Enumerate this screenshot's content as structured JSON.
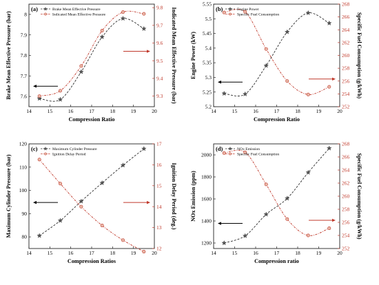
{
  "colors": {
    "left": "#2b2b2b",
    "right": "#c0392b",
    "frame": "#222222"
  },
  "chart_data": [
    {
      "panel": "(a)",
      "type": "line",
      "xlabel": "Compression Ratio",
      "ylabel_left": "Brake Mean Effective Pressure (bar)",
      "ylabel_right": "Indicated Mean Effective Pressure (bar)",
      "xlim": [
        14,
        20
      ],
      "xticks": [
        14,
        15,
        16,
        17,
        18,
        19,
        20
      ],
      "ylim_left": [
        7.55,
        8.05
      ],
      "yticks_left": [
        7.6,
        7.7,
        7.8,
        7.9,
        8.0
      ],
      "ylim_right": [
        9.24,
        9.82
      ],
      "yticks_right": [
        9.3,
        9.4,
        9.5,
        9.6,
        9.7,
        9.8
      ],
      "x": [
        14.5,
        15.5,
        16.5,
        17.5,
        18.5,
        19.5
      ],
      "series": [
        {
          "name": "Brake Mean Effective Pressure",
          "axis": "left",
          "marker": "star",
          "values": [
            7.59,
            7.585,
            7.72,
            7.89,
            7.98,
            7.93
          ]
        },
        {
          "name": "Indicated Mean Effective Pressure",
          "axis": "right",
          "marker": "circle",
          "values": [
            9.3,
            9.33,
            9.47,
            9.67,
            9.775,
            9.765
          ]
        }
      ],
      "legend_position": "top-left",
      "arrows": [
        {
          "direction": "left",
          "side": "left"
        },
        {
          "direction": "right",
          "side": "right"
        }
      ]
    },
    {
      "panel": "(b)",
      "type": "line",
      "xlabel": "Compression Ratio",
      "ylabel_left": "Engine Power (kW)",
      "ylabel_right": "Specific Fuel Consumption (g/kWh)",
      "xlim": [
        14,
        20
      ],
      "xticks": [
        14,
        15,
        16,
        17,
        18,
        19,
        20
      ],
      "ylim_left": [
        5.2,
        5.55
      ],
      "yticks_left": [
        5.2,
        5.25,
        5.3,
        5.35,
        5.4,
        5.45,
        5.5,
        5.55
      ],
      "ylim_right": [
        252,
        268
      ],
      "yticks_right": [
        252,
        254,
        256,
        258,
        260,
        262,
        264,
        266,
        268
      ],
      "x": [
        14.5,
        15.5,
        16.5,
        17.5,
        18.5,
        19.5
      ],
      "series": [
        {
          "name": "Engine Power",
          "axis": "left",
          "marker": "star",
          "values": [
            5.245,
            5.243,
            5.34,
            5.455,
            5.52,
            5.485
          ]
        },
        {
          "name": "Specific Fuel Consumption",
          "axis": "right",
          "marker": "circle",
          "values": [
            266.7,
            266.8,
            261.0,
            256.0,
            253.9,
            255.1
          ]
        }
      ],
      "legend_position": "top-left",
      "arrows": [
        {
          "direction": "left",
          "side": "left"
        },
        {
          "direction": "right",
          "side": "right"
        }
      ]
    },
    {
      "panel": "(c)",
      "type": "line",
      "xlabel": "Compression Ratios",
      "ylabel_left": "Maximum Cylinder Pressure (bar)",
      "ylabel_right": "Ignition Delay Period (deg.)",
      "xlim": [
        14,
        20
      ],
      "xticks": [
        14,
        15,
        16,
        17,
        18,
        19,
        20
      ],
      "ylim_left": [
        75,
        120
      ],
      "yticks_left": [
        80,
        90,
        100,
        110,
        120
      ],
      "ylim_right": [
        12,
        17
      ],
      "yticks_right": [
        12,
        13,
        14,
        15,
        16,
        17
      ],
      "x": [
        14.5,
        15.5,
        16.5,
        17.5,
        18.5,
        19.5
      ],
      "series": [
        {
          "name": "Maximum Cylinder Pressure",
          "axis": "left",
          "marker": "star",
          "values": [
            80.5,
            87,
            95.3,
            103.2,
            110.8,
            117.9
          ]
        },
        {
          "name": "Ignition Delay Period",
          "axis": "right",
          "marker": "circle",
          "values": [
            16.25,
            15.1,
            14.0,
            13.1,
            12.4,
            11.85
          ]
        }
      ],
      "legend_position": "top-left",
      "arrows": [
        {
          "direction": "left",
          "side": "left"
        },
        {
          "direction": "right",
          "side": "right"
        }
      ]
    },
    {
      "panel": "(d)",
      "type": "line",
      "xlabel": "Compression ratio",
      "ylabel_left": "NOx Emission (ppm)",
      "ylabel_right": "Specific Fuel Consumption (g/kWh)",
      "xlim": [
        14,
        20
      ],
      "xticks": [
        14,
        15,
        16,
        17,
        18,
        19,
        20
      ],
      "ylim_left": [
        1150,
        2100
      ],
      "yticks_left": [
        1200,
        1400,
        1600,
        1800,
        2000
      ],
      "ylim_right": [
        252,
        268
      ],
      "yticks_right": [
        252,
        254,
        256,
        258,
        260,
        262,
        264,
        266,
        268
      ],
      "x": [
        14.5,
        15.5,
        16.5,
        17.5,
        18.5,
        19.5
      ],
      "series": [
        {
          "name": "NOx Emission",
          "axis": "left",
          "marker": "star",
          "values": [
            1200,
            1265,
            1460,
            1605,
            1840,
            2060
          ]
        },
        {
          "name": "Specific Fuel Consumption",
          "axis": "right",
          "marker": "circle",
          "values": [
            266.6,
            266.7,
            261.8,
            256.5,
            254.0,
            255.1
          ]
        }
      ],
      "legend_position": "top-left",
      "arrows": [
        {
          "direction": "left",
          "side": "left"
        },
        {
          "direction": "right",
          "side": "right"
        }
      ]
    }
  ]
}
